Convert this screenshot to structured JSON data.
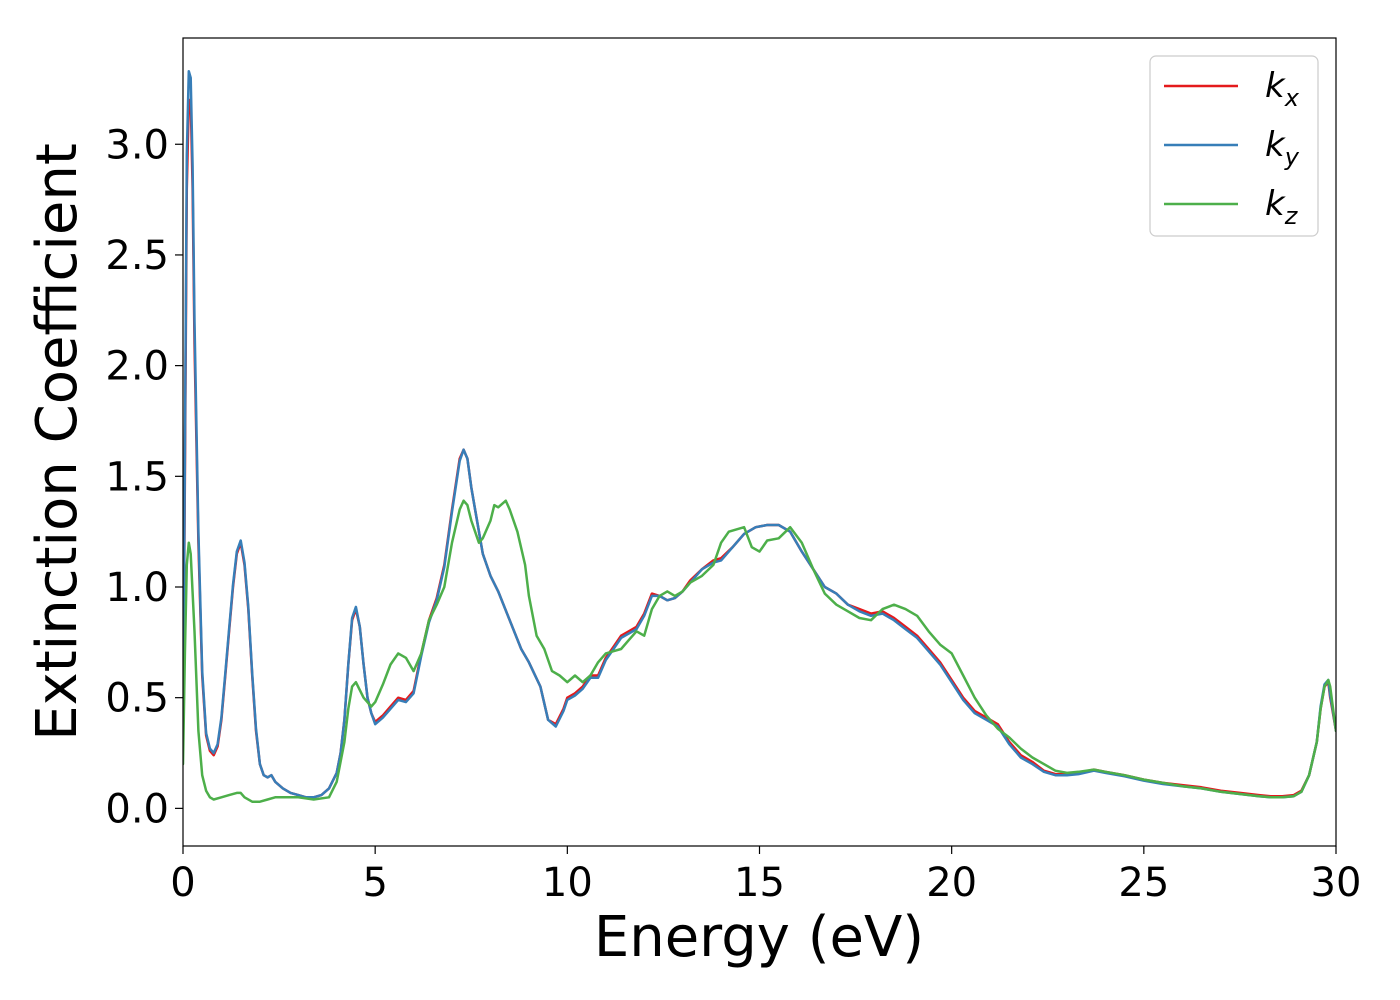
{
  "chart_data": {
    "type": "line",
    "title": "",
    "xlabel": "Energy (eV)",
    "ylabel": "Extinction Coefficient",
    "xlim": [
      0,
      30
    ],
    "ylim": [
      -0.17,
      3.48
    ],
    "xticks": [
      0,
      5,
      10,
      15,
      20,
      25,
      30
    ],
    "xtick_labels": [
      "0",
      "5",
      "10",
      "15",
      "20",
      "25",
      "30"
    ],
    "yticks": [
      0.0,
      0.5,
      1.0,
      1.5,
      2.0,
      2.5,
      3.0
    ],
    "ytick_labels": [
      "0.0",
      "0.5",
      "1.0",
      "1.5",
      "2.0",
      "2.5",
      "3.0"
    ],
    "grid": false,
    "legend_position": "top-right",
    "series": [
      {
        "name": "k_x",
        "legend_base": "k",
        "legend_sub": "x",
        "color": "#e41a1c",
        "x": [
          0.0,
          0.05,
          0.1,
          0.15,
          0.2,
          0.25,
          0.3,
          0.4,
          0.5,
          0.6,
          0.7,
          0.8,
          0.9,
          1.0,
          1.1,
          1.2,
          1.3,
          1.4,
          1.5,
          1.6,
          1.7,
          1.8,
          1.9,
          2.0,
          2.1,
          2.2,
          2.3,
          2.4,
          2.6,
          2.8,
          3.0,
          3.2,
          3.4,
          3.6,
          3.8,
          4.0,
          4.1,
          4.2,
          4.3,
          4.4,
          4.5,
          4.6,
          4.7,
          4.8,
          4.9,
          5.0,
          5.2,
          5.4,
          5.6,
          5.8,
          6.0,
          6.2,
          6.4,
          6.6,
          6.8,
          7.0,
          7.2,
          7.3,
          7.4,
          7.5,
          7.6,
          7.8,
          8.0,
          8.2,
          8.5,
          8.8,
          9.0,
          9.3,
          9.5,
          9.7,
          9.9,
          10.0,
          10.2,
          10.4,
          10.6,
          10.8,
          11.0,
          11.2,
          11.4,
          11.6,
          11.8,
          12.0,
          12.2,
          12.4,
          12.6,
          12.8,
          13.0,
          13.2,
          13.5,
          13.8,
          14.0,
          14.3,
          14.6,
          14.9,
          15.2,
          15.5,
          15.8,
          16.1,
          16.4,
          16.7,
          17.0,
          17.3,
          17.6,
          17.9,
          18.2,
          18.5,
          18.8,
          19.1,
          19.4,
          19.7,
          20.0,
          20.3,
          20.6,
          20.9,
          21.2,
          21.5,
          21.8,
          22.1,
          22.4,
          22.7,
          23.0,
          23.3,
          23.7,
          24.0,
          24.5,
          25.0,
          25.5,
          26.0,
          26.5,
          27.0,
          27.5,
          28.0,
          28.3,
          28.6,
          28.9,
          29.1,
          29.3,
          29.5,
          29.6,
          29.7,
          29.8,
          29.85,
          29.9,
          30.0
        ],
        "y": [
          0.3,
          1.5,
          2.8,
          3.2,
          3.2,
          2.8,
          2.1,
          1.2,
          0.6,
          0.33,
          0.26,
          0.24,
          0.28,
          0.4,
          0.6,
          0.8,
          1.0,
          1.15,
          1.2,
          1.1,
          0.9,
          0.6,
          0.35,
          0.2,
          0.15,
          0.14,
          0.15,
          0.12,
          0.09,
          0.07,
          0.06,
          0.05,
          0.05,
          0.06,
          0.09,
          0.16,
          0.25,
          0.4,
          0.65,
          0.85,
          0.9,
          0.82,
          0.65,
          0.5,
          0.43,
          0.39,
          0.42,
          0.46,
          0.5,
          0.49,
          0.53,
          0.7,
          0.85,
          0.95,
          1.1,
          1.35,
          1.58,
          1.62,
          1.58,
          1.45,
          1.35,
          1.15,
          1.05,
          0.98,
          0.85,
          0.72,
          0.66,
          0.55,
          0.4,
          0.38,
          0.45,
          0.5,
          0.52,
          0.55,
          0.6,
          0.6,
          0.68,
          0.73,
          0.78,
          0.8,
          0.82,
          0.88,
          0.97,
          0.96,
          0.94,
          0.95,
          0.98,
          1.03,
          1.08,
          1.12,
          1.13,
          1.18,
          1.24,
          1.27,
          1.28,
          1.28,
          1.25,
          1.16,
          1.08,
          1.0,
          0.97,
          0.92,
          0.9,
          0.88,
          0.89,
          0.86,
          0.82,
          0.78,
          0.72,
          0.66,
          0.58,
          0.5,
          0.44,
          0.41,
          0.38,
          0.3,
          0.24,
          0.21,
          0.17,
          0.155,
          0.155,
          0.16,
          0.175,
          0.165,
          0.15,
          0.13,
          0.115,
          0.105,
          0.095,
          0.08,
          0.07,
          0.06,
          0.055,
          0.055,
          0.06,
          0.08,
          0.15,
          0.3,
          0.45,
          0.55,
          0.57,
          0.5,
          0.45,
          0.35
        ]
      },
      {
        "name": "k_y",
        "legend_base": "k",
        "legend_sub": "y",
        "color": "#377eb8",
        "x": [
          0.0,
          0.05,
          0.1,
          0.15,
          0.2,
          0.25,
          0.3,
          0.4,
          0.5,
          0.6,
          0.7,
          0.8,
          0.9,
          1.0,
          1.1,
          1.2,
          1.3,
          1.4,
          1.5,
          1.6,
          1.7,
          1.8,
          1.9,
          2.0,
          2.1,
          2.2,
          2.3,
          2.4,
          2.6,
          2.8,
          3.0,
          3.2,
          3.4,
          3.6,
          3.8,
          4.0,
          4.1,
          4.2,
          4.3,
          4.4,
          4.5,
          4.6,
          4.7,
          4.8,
          4.9,
          5.0,
          5.2,
          5.4,
          5.6,
          5.8,
          6.0,
          6.2,
          6.4,
          6.6,
          6.8,
          7.0,
          7.2,
          7.3,
          7.4,
          7.5,
          7.6,
          7.8,
          8.0,
          8.2,
          8.5,
          8.8,
          9.0,
          9.3,
          9.5,
          9.7,
          9.9,
          10.0,
          10.2,
          10.4,
          10.6,
          10.8,
          11.0,
          11.2,
          11.4,
          11.6,
          11.8,
          12.0,
          12.2,
          12.4,
          12.6,
          12.8,
          13.0,
          13.2,
          13.5,
          13.8,
          14.0,
          14.3,
          14.6,
          14.9,
          15.2,
          15.5,
          15.8,
          16.1,
          16.4,
          16.7,
          17.0,
          17.3,
          17.6,
          17.9,
          18.2,
          18.5,
          18.8,
          19.1,
          19.4,
          19.7,
          20.0,
          20.3,
          20.6,
          20.9,
          21.2,
          21.5,
          21.8,
          22.1,
          22.4,
          22.7,
          23.0,
          23.3,
          23.7,
          24.0,
          24.5,
          25.0,
          25.5,
          26.0,
          26.5,
          27.0,
          27.5,
          28.0,
          28.3,
          28.6,
          28.9,
          29.1,
          29.3,
          29.5,
          29.6,
          29.7,
          29.8,
          29.85,
          29.9,
          30.0
        ],
        "y": [
          0.3,
          1.6,
          2.95,
          3.33,
          3.3,
          2.9,
          2.2,
          1.25,
          0.62,
          0.34,
          0.27,
          0.25,
          0.29,
          0.41,
          0.61,
          0.81,
          1.01,
          1.16,
          1.21,
          1.11,
          0.91,
          0.61,
          0.36,
          0.2,
          0.15,
          0.14,
          0.15,
          0.12,
          0.09,
          0.07,
          0.06,
          0.05,
          0.05,
          0.06,
          0.09,
          0.16,
          0.25,
          0.4,
          0.65,
          0.86,
          0.91,
          0.82,
          0.65,
          0.5,
          0.43,
          0.38,
          0.41,
          0.45,
          0.49,
          0.48,
          0.52,
          0.69,
          0.84,
          0.94,
          1.09,
          1.34,
          1.57,
          1.62,
          1.58,
          1.45,
          1.35,
          1.15,
          1.05,
          0.98,
          0.85,
          0.72,
          0.66,
          0.55,
          0.4,
          0.37,
          0.44,
          0.49,
          0.51,
          0.54,
          0.59,
          0.59,
          0.67,
          0.72,
          0.77,
          0.79,
          0.81,
          0.87,
          0.96,
          0.96,
          0.94,
          0.95,
          0.98,
          1.02,
          1.08,
          1.11,
          1.12,
          1.18,
          1.24,
          1.27,
          1.28,
          1.28,
          1.25,
          1.16,
          1.08,
          1.0,
          0.97,
          0.92,
          0.89,
          0.87,
          0.88,
          0.85,
          0.81,
          0.77,
          0.71,
          0.65,
          0.57,
          0.49,
          0.43,
          0.4,
          0.37,
          0.29,
          0.23,
          0.2,
          0.165,
          0.15,
          0.15,
          0.155,
          0.17,
          0.16,
          0.145,
          0.125,
          0.11,
          0.1,
          0.09,
          0.075,
          0.065,
          0.055,
          0.05,
          0.05,
          0.055,
          0.075,
          0.15,
          0.3,
          0.46,
          0.56,
          0.58,
          0.51,
          0.46,
          0.35
        ]
      },
      {
        "name": "k_z",
        "legend_base": "k",
        "legend_sub": "z",
        "color": "#4daf4a",
        "x": [
          0.0,
          0.05,
          0.1,
          0.15,
          0.2,
          0.3,
          0.4,
          0.5,
          0.6,
          0.7,
          0.8,
          1.0,
          1.2,
          1.4,
          1.5,
          1.6,
          1.8,
          2.0,
          2.2,
          2.4,
          2.6,
          3.0,
          3.4,
          3.8,
          4.0,
          4.2,
          4.3,
          4.4,
          4.5,
          4.7,
          4.9,
          5.0,
          5.2,
          5.4,
          5.6,
          5.8,
          6.0,
          6.2,
          6.4,
          6.6,
          6.8,
          7.0,
          7.2,
          7.3,
          7.4,
          7.5,
          7.7,
          7.8,
          8.0,
          8.1,
          8.2,
          8.4,
          8.5,
          8.7,
          8.9,
          9.0,
          9.2,
          9.4,
          9.6,
          9.8,
          10.0,
          10.2,
          10.4,
          10.6,
          10.8,
          11.0,
          11.2,
          11.4,
          11.6,
          11.8,
          12.0,
          12.2,
          12.4,
          12.6,
          12.8,
          13.0,
          13.2,
          13.5,
          13.8,
          14.0,
          14.2,
          14.4,
          14.6,
          14.8,
          15.0,
          15.2,
          15.5,
          15.8,
          16.1,
          16.4,
          16.7,
          17.0,
          17.3,
          17.6,
          17.9,
          18.2,
          18.5,
          18.8,
          19.1,
          19.4,
          19.7,
          20.0,
          20.3,
          20.6,
          20.9,
          21.2,
          21.5,
          21.8,
          22.1,
          22.4,
          22.7,
          23.0,
          23.3,
          23.7,
          24.0,
          24.5,
          25.0,
          25.5,
          26.0,
          26.5,
          27.0,
          27.5,
          28.0,
          28.3,
          28.6,
          28.9,
          29.1,
          29.3,
          29.5,
          29.6,
          29.7,
          29.8,
          29.85,
          29.9,
          30.0
        ],
        "y": [
          0.2,
          0.7,
          1.1,
          1.2,
          1.15,
          0.8,
          0.35,
          0.15,
          0.08,
          0.05,
          0.04,
          0.05,
          0.06,
          0.07,
          0.07,
          0.05,
          0.03,
          0.03,
          0.04,
          0.05,
          0.05,
          0.05,
          0.04,
          0.05,
          0.12,
          0.3,
          0.45,
          0.55,
          0.57,
          0.5,
          0.46,
          0.48,
          0.56,
          0.65,
          0.7,
          0.68,
          0.62,
          0.7,
          0.85,
          0.92,
          1.0,
          1.2,
          1.35,
          1.39,
          1.37,
          1.3,
          1.2,
          1.22,
          1.3,
          1.37,
          1.36,
          1.39,
          1.35,
          1.25,
          1.1,
          0.96,
          0.78,
          0.72,
          0.62,
          0.6,
          0.57,
          0.6,
          0.57,
          0.6,
          0.66,
          0.7,
          0.71,
          0.72,
          0.76,
          0.8,
          0.78,
          0.9,
          0.96,
          0.98,
          0.96,
          0.98,
          1.02,
          1.05,
          1.1,
          1.2,
          1.25,
          1.26,
          1.27,
          1.18,
          1.16,
          1.21,
          1.22,
          1.27,
          1.2,
          1.08,
          0.97,
          0.92,
          0.89,
          0.86,
          0.85,
          0.9,
          0.92,
          0.9,
          0.87,
          0.8,
          0.74,
          0.7,
          0.6,
          0.5,
          0.42,
          0.36,
          0.32,
          0.27,
          0.23,
          0.2,
          0.17,
          0.16,
          0.165,
          0.175,
          0.165,
          0.15,
          0.13,
          0.115,
          0.1,
          0.09,
          0.075,
          0.065,
          0.055,
          0.05,
          0.05,
          0.055,
          0.075,
          0.15,
          0.3,
          0.45,
          0.55,
          0.58,
          0.55,
          0.48,
          0.35
        ]
      }
    ]
  }
}
